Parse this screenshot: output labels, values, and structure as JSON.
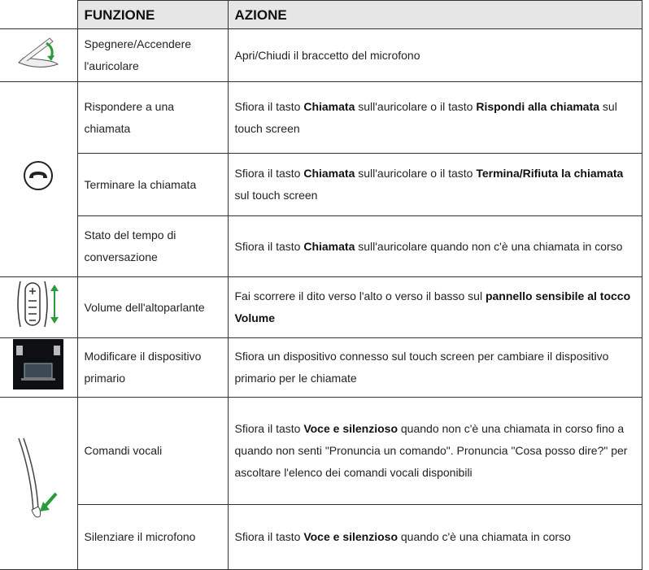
{
  "header": {
    "columns": [
      "FUNZIONE",
      "AZIONE"
    ]
  },
  "rows": [
    {
      "function": "Spegnere/Accendere l'auricolare",
      "action": [
        {
          "text": "Apri/Chiudi il braccetto del microfono",
          "bold": false
        }
      ]
    },
    {
      "function": "Rispondere a una chiamata",
      "action": [
        {
          "text": "Sfiora il tasto ",
          "bold": false
        },
        {
          "text": "Chiamata",
          "bold": true
        },
        {
          "text": " sull'auricolare o il tasto ",
          "bold": false
        },
        {
          "text": "Rispondi alla chiamata",
          "bold": true
        },
        {
          "text": " sul touch screen",
          "bold": false
        }
      ]
    },
    {
      "function": "Terminare la chiamata",
      "action": [
        {
          "text": "Sfiora il tasto ",
          "bold": false
        },
        {
          "text": "Chiamata",
          "bold": true
        },
        {
          "text": " sull'auricolare o il tasto ",
          "bold": false
        },
        {
          "text": "Termina/Rifiuta la chiamata",
          "bold": true
        },
        {
          "text": " sul touch screen",
          "bold": false
        }
      ]
    },
    {
      "function": "Stato del tempo di conversazione",
      "action": [
        {
          "text": "Sfiora il tasto ",
          "bold": false
        },
        {
          "text": "Chiamata",
          "bold": true
        },
        {
          "text": " sull'auricolare quando non c'è una chiamata in corso",
          "bold": false
        }
      ]
    },
    {
      "function": "Volume dell'altoparlante",
      "action": [
        {
          "text": "Fai scorrere il dito verso l'alto o verso il basso sul ",
          "bold": false
        },
        {
          "text": "pannello sensibile al tocco Volume",
          "bold": true
        }
      ]
    },
    {
      "function": "Modificare il dispositivo primario",
      "action": [
        {
          "text": "Sfiora un dispositivo connesso sul touch screen per cambiare il dispositivo primario per le chiamate",
          "bold": false
        }
      ]
    },
    {
      "function": "Comandi vocali",
      "action": [
        {
          "text": "Sfiora il tasto ",
          "bold": false
        },
        {
          "text": "Voce e silenzioso",
          "bold": true
        },
        {
          "text": " quando non c'è una chiamata in corso fino a quando non senti \"Pronuncia un comando\". Pronuncia \"Cosa posso dire?\" per ascoltare l'elenco dei comandi vocali disponibili",
          "bold": false
        }
      ]
    },
    {
      "function": "Silenziare il microfono",
      "action": [
        {
          "text": "Sfiora il tasto ",
          "bold": false
        },
        {
          "text": "Voce e silenzioso",
          "bold": true
        },
        {
          "text": " quando c'è una chiamata in corso",
          "bold": false
        }
      ]
    }
  ]
}
